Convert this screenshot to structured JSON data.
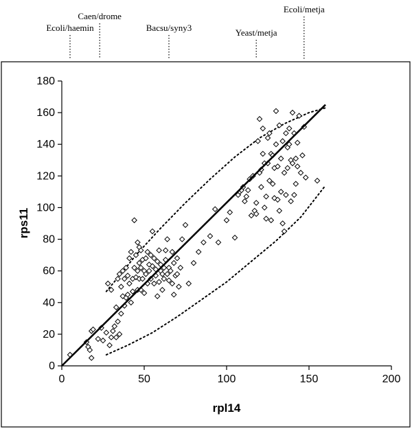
{
  "chart_data": {
    "type": "scatter",
    "title": "",
    "xlabel": "rpl14",
    "ylabel": "rps11",
    "xlim": [
      0,
      200
    ],
    "ylim": [
      0,
      180
    ],
    "x_ticks": [
      "0",
      "50",
      "100",
      "150",
      "200"
    ],
    "y_ticks": [
      "0",
      "20",
      "40",
      "60",
      "80",
      "100",
      "120",
      "140",
      "160",
      "180"
    ],
    "grid": false,
    "legend": "none",
    "marker": "diamond",
    "annotations": [
      {
        "label": "Ecoli/haemin",
        "x": 5
      },
      {
        "label": "Caen/drome",
        "x": 23
      },
      {
        "label": "Bacsu/syny3",
        "x": 65
      },
      {
        "label": "Yeast/metja",
        "x": 118
      },
      {
        "label": "Ecoli/metja",
        "x": 147
      }
    ],
    "regression_line": {
      "x": [
        0,
        160
      ],
      "y": [
        0,
        165
      ]
    },
    "confidence_bounds": [
      {
        "x": [
          27,
          35,
          45,
          60,
          75,
          90,
          105,
          120,
          135,
          150,
          160
        ],
        "y": [
          47,
          57,
          70,
          87,
          103,
          118,
          132,
          144,
          153,
          160,
          163
        ]
      },
      {
        "x": [
          27,
          40,
          55,
          70,
          85,
          100,
          115,
          130,
          145,
          160
        ],
        "y": [
          7,
          13,
          21,
          31,
          42,
          53,
          66,
          79,
          94,
          114
        ]
      }
    ],
    "series": [
      {
        "x": [
          5,
          15,
          16,
          17,
          18,
          18,
          19,
          22,
          24,
          25,
          27,
          28,
          29,
          30,
          30,
          31,
          32,
          33,
          33,
          34,
          34,
          35,
          35,
          36,
          36,
          37,
          37,
          38,
          38,
          39,
          39,
          40,
          40,
          41,
          41,
          42,
          42,
          43,
          43,
          44,
          44,
          45,
          45,
          46,
          46,
          46,
          47,
          47,
          47,
          48,
          48,
          48,
          49,
          49,
          50,
          50,
          51,
          51,
          52,
          52,
          53,
          53,
          54,
          54,
          55,
          55,
          56,
          56,
          57,
          57,
          58,
          58,
          59,
          59,
          60,
          60,
          61,
          61,
          62,
          62,
          63,
          63,
          64,
          64,
          65,
          65,
          66,
          67,
          67,
          68,
          68,
          69,
          70,
          70,
          71,
          72,
          73,
          75,
          77,
          80,
          83,
          86,
          90,
          93,
          95,
          100,
          102,
          105,
          107,
          108,
          109,
          110,
          111,
          112,
          113,
          114,
          115,
          116,
          117,
          118,
          118,
          119,
          120,
          120,
          121,
          121,
          122,
          122,
          123,
          123,
          124,
          124,
          125,
          125,
          126,
          126,
          127,
          127,
          128,
          128,
          129,
          129,
          130,
          130,
          131,
          131,
          132,
          132,
          133,
          133,
          134,
          134,
          135,
          135,
          136,
          136,
          137,
          137,
          138,
          138,
          139,
          139,
          140,
          140,
          141,
          141,
          142,
          142,
          143,
          143,
          144,
          145,
          146,
          147,
          148,
          155
        ],
        "y": [
          7,
          15,
          12,
          10,
          22,
          5,
          23,
          17,
          24,
          16,
          21,
          52,
          13,
          48,
          18,
          22,
          25,
          37,
          18,
          28,
          55,
          20,
          58,
          50,
          33,
          44,
          60,
          38,
          55,
          43,
          62,
          45,
          57,
          52,
          68,
          40,
          72,
          47,
          55,
          62,
          92,
          70,
          56,
          60,
          78,
          48,
          65,
          55,
          75,
          48,
          62,
          73,
          55,
          67,
          46,
          60,
          58,
          68,
          52,
          72,
          60,
          64,
          55,
          70,
          63,
          85,
          52,
          68,
          57,
          61,
          44,
          66,
          53,
          73,
          60,
          64,
          48,
          58,
          55,
          62,
          67,
          73,
          58,
          80,
          54,
          62,
          60,
          52,
          72,
          45,
          65,
          57,
          58,
          68,
          50,
          62,
          80,
          89,
          52,
          65,
          72,
          78,
          82,
          99,
          78,
          92,
          97,
          81,
          108,
          110,
          111,
          113,
          104,
          107,
          111,
          118,
          95,
          120,
          98,
          96,
          103,
          142,
          122,
          156,
          113,
          124,
          134,
          150,
          100,
          128,
          93,
          107,
          128,
          144,
          117,
          147,
          92,
          134,
          115,
          133,
          106,
          125,
          140,
          161,
          105,
          126,
          152,
          98,
          110,
          131,
          90,
          142,
          85,
          122,
          108,
          147,
          125,
          138,
          140,
          150,
          104,
          130,
          128,
          160,
          108,
          147,
          115,
          131,
          126,
          141,
          158,
          122,
          133,
          151,
          119,
          117
        ]
      }
    ]
  }
}
